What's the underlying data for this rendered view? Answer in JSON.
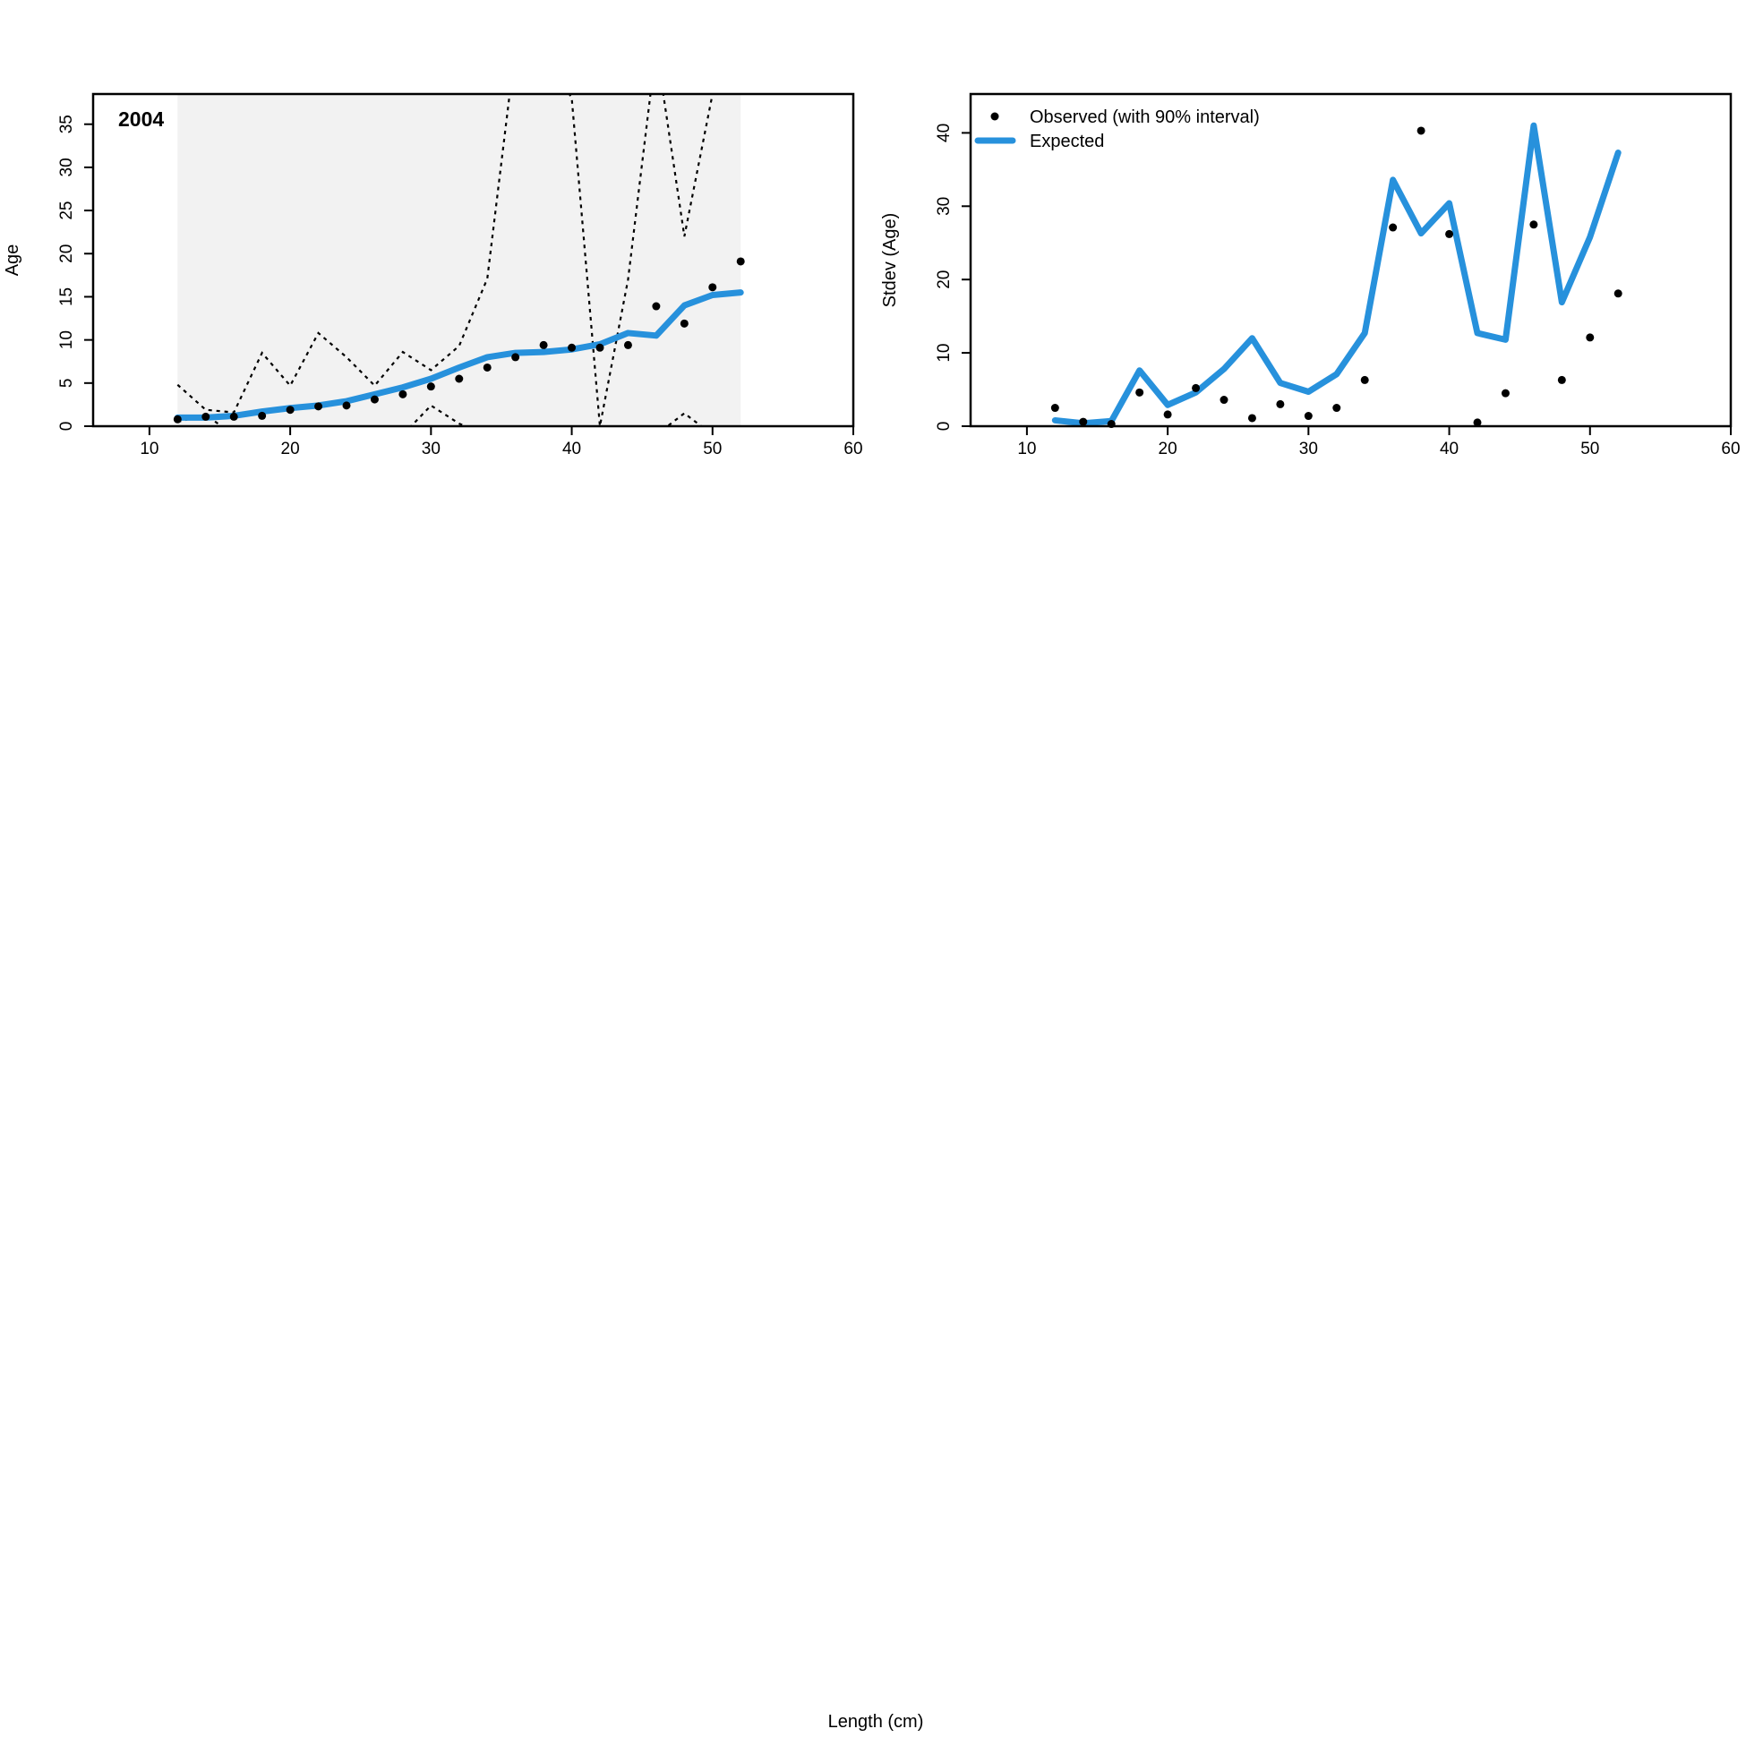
{
  "figure": {
    "xlabel": "Length (cm)"
  },
  "chart_data": [
    {
      "type": "line",
      "panel_label": "2004",
      "xlabel": "",
      "ylabel": "Age",
      "xlim": [
        6,
        60
      ],
      "ylim": [
        0,
        38.5
      ],
      "xticks": [
        10,
        20,
        30,
        40,
        50,
        60
      ],
      "yticks": [
        0,
        5,
        10,
        15,
        20,
        25,
        30,
        35
      ],
      "x": [
        12,
        14,
        16,
        18,
        20,
        22,
        24,
        26,
        28,
        30,
        32,
        34,
        36,
        38,
        40,
        42,
        44,
        46,
        48,
        50,
        52
      ],
      "series": [
        {
          "role": "observed-points",
          "values": [
            0.8,
            1.1,
            1.1,
            1.2,
            1.9,
            2.3,
            2.4,
            3.1,
            3.7,
            4.6,
            5.5,
            6.8,
            8.0,
            9.4,
            9.1,
            9.1,
            9.4,
            13.9,
            11.9,
            16.1,
            19.1
          ],
          "color": "#000000"
        },
        {
          "role": "expected-line",
          "values": [
            1.0,
            1.0,
            1.2,
            1.7,
            2.1,
            2.4,
            2.9,
            3.7,
            4.5,
            5.5,
            6.8,
            8.0,
            8.5,
            8.6,
            8.9,
            9.5,
            10.8,
            10.5,
            14.0,
            15.2,
            15.5
          ],
          "color": "#2791DC"
        },
        {
          "role": "interval-upper-dotted",
          "values": [
            4.8,
            1.9,
            1.6,
            8.5,
            4.7,
            10.8,
            8.0,
            4.7,
            8.6,
            6.5,
            9.3,
            17.1,
            44,
            44,
            38,
            0,
            17.0,
            44,
            22.0,
            38.5,
            44
          ],
          "color": "#000000"
        },
        {
          "role": "interval-lower-dotted",
          "values": [
            0.5,
            1.3,
            -1,
            -1,
            -1,
            -1,
            -1,
            -1,
            -1,
            2.4,
            0.3,
            -1,
            -1,
            -1,
            -1,
            0,
            -1,
            -1,
            1.5,
            -1,
            -1
          ],
          "color": "#000000"
        }
      ],
      "shaded_band": {
        "from": 12,
        "to": 52,
        "color": "#F2F2F2"
      }
    },
    {
      "type": "line",
      "xlabel": "",
      "ylabel": "Stdev (Age)",
      "xlim": [
        6,
        60
      ],
      "ylim": [
        0,
        45.3
      ],
      "xticks": [
        10,
        20,
        30,
        40,
        50,
        60
      ],
      "yticks": [
        0,
        10,
        20,
        30,
        40
      ],
      "x": [
        12,
        14,
        16,
        18,
        20,
        22,
        24,
        26,
        28,
        30,
        32,
        34,
        36,
        38,
        40,
        42,
        44,
        46,
        48,
        50,
        52
      ],
      "legend": {
        "placement": "top-left",
        "entries": [
          {
            "label": "Observed (with 90% interval)",
            "kind": "point",
            "color": "#000000"
          },
          {
            "label": "Expected",
            "kind": "line",
            "color": "#2791DC"
          }
        ]
      },
      "series": [
        {
          "role": "observed-points",
          "values": [
            2.5,
            0.6,
            0.3,
            4.6,
            1.6,
            5.2,
            3.6,
            1.1,
            3.0,
            1.4,
            2.5,
            6.3,
            27.1,
            40.3,
            26.2,
            0.5,
            4.5,
            27.5,
            6.3,
            12.1,
            18.1
          ],
          "color": "#000000"
        },
        {
          "role": "expected-line",
          "values": [
            0.8,
            0.4,
            0.7,
            7.6,
            2.9,
            4.6,
            7.8,
            12.0,
            5.9,
            4.7,
            7.1,
            12.7,
            33.6,
            26.3,
            30.4,
            12.7,
            11.8,
            41.0,
            16.9,
            25.8,
            37.3
          ],
          "color": "#2791DC"
        }
      ]
    }
  ]
}
